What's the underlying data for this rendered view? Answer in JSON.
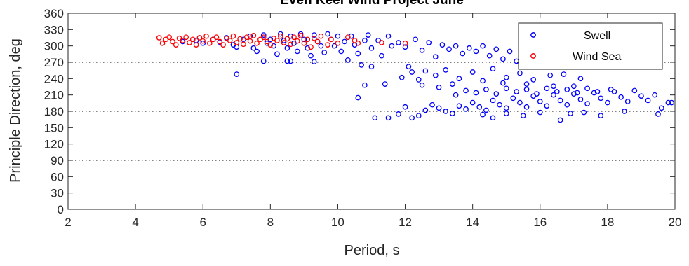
{
  "chart_data": {
    "type": "scatter",
    "title": "Even Keel Wind Project June",
    "xlabel": "Period, s",
    "ylabel": "Principle Direction, deg",
    "xlim": [
      2,
      20
    ],
    "ylim": [
      0,
      360
    ],
    "xticks": [
      2,
      4,
      6,
      8,
      10,
      12,
      14,
      16,
      18,
      20
    ],
    "yticks": [
      0,
      30,
      60,
      90,
      120,
      150,
      180,
      210,
      240,
      270,
      300,
      330,
      360
    ],
    "reference_lines": [
      90,
      180,
      270
    ],
    "grid": false,
    "legend": {
      "position": "top-right",
      "entries": [
        "Swell",
        "Wind Sea"
      ]
    },
    "series": [
      {
        "name": "Swell",
        "color": "#0000ff",
        "marker": "open-circle",
        "points": [
          [
            5.4,
            308
          ],
          [
            5.8,
            310
          ],
          [
            6.0,
            305
          ],
          [
            6.3,
            312
          ],
          [
            6.5,
            307
          ],
          [
            6.7,
            315
          ],
          [
            6.9,
            302
          ],
          [
            7.0,
            298
          ],
          [
            7.0,
            248
          ],
          [
            7.2,
            312
          ],
          [
            7.4,
            318
          ],
          [
            7.5,
            296
          ],
          [
            7.6,
            290
          ],
          [
            7.8,
            320
          ],
          [
            7.9,
            305
          ],
          [
            8.0,
            312
          ],
          [
            8.1,
            300
          ],
          [
            8.2,
            285
          ],
          [
            8.3,
            322
          ],
          [
            8.4,
            310
          ],
          [
            8.5,
            296
          ],
          [
            8.5,
            272
          ],
          [
            8.6,
            318
          ],
          [
            8.7,
            305
          ],
          [
            8.8,
            290
          ],
          [
            8.9,
            322
          ],
          [
            9.0,
            312
          ],
          [
            9.1,
            296
          ],
          [
            9.2,
            282
          ],
          [
            9.3,
            320
          ],
          [
            9.4,
            308
          ],
          [
            9.5,
            300
          ],
          [
            9.6,
            288
          ],
          [
            9.7,
            322
          ],
          [
            9.8,
            312
          ],
          [
            9.9,
            300
          ],
          [
            10.0,
            318
          ],
          [
            10.1,
            290
          ],
          [
            10.2,
            308
          ],
          [
            10.3,
            274
          ],
          [
            10.4,
            318
          ],
          [
            10.5,
            302
          ],
          [
            10.6,
            286
          ],
          [
            10.7,
            265
          ],
          [
            10.8,
            310
          ],
          [
            10.9,
            320
          ],
          [
            11.0,
            296
          ],
          [
            11.0,
            262
          ],
          [
            11.2,
            310
          ],
          [
            11.3,
            282
          ],
          [
            11.5,
            318
          ],
          [
            11.6,
            300
          ],
          [
            11.8,
            306
          ],
          [
            12.0,
            298
          ],
          [
            12.1,
            262
          ],
          [
            12.3,
            312
          ],
          [
            12.5,
            292
          ],
          [
            12.7,
            306
          ],
          [
            12.9,
            280
          ],
          [
            13.1,
            302
          ],
          [
            13.3,
            294
          ],
          [
            13.5,
            300
          ],
          [
            13.7,
            286
          ],
          [
            13.9,
            296
          ],
          [
            14.1,
            290
          ],
          [
            14.3,
            300
          ],
          [
            14.5,
            282
          ],
          [
            14.7,
            294
          ],
          [
            14.9,
            276
          ],
          [
            15.1,
            290
          ],
          [
            15.3,
            272
          ],
          [
            15.5,
            286
          ],
          [
            15.7,
            300
          ],
          [
            16.0,
            280
          ],
          [
            16.2,
            296
          ],
          [
            16.5,
            275
          ],
          [
            16.8,
            290
          ],
          [
            7.8,
            272
          ],
          [
            8.6,
            272
          ],
          [
            9.3,
            271
          ],
          [
            10.8,
            228
          ],
          [
            10.6,
            205
          ],
          [
            11.4,
            230
          ],
          [
            11.9,
            242
          ],
          [
            12.2,
            252
          ],
          [
            12.4,
            238
          ],
          [
            12.6,
            254
          ],
          [
            12.9,
            246
          ],
          [
            13.2,
            256
          ],
          [
            13.6,
            240
          ],
          [
            14.0,
            252
          ],
          [
            14.3,
            236
          ],
          [
            14.6,
            258
          ],
          [
            15.0,
            242
          ],
          [
            15.4,
            250
          ],
          [
            15.8,
            238
          ],
          [
            16.3,
            246
          ],
          [
            16.7,
            248
          ],
          [
            17.2,
            240
          ],
          [
            11.1,
            168
          ],
          [
            11.5,
            168
          ],
          [
            11.8,
            175
          ],
          [
            12.0,
            188
          ],
          [
            12.2,
            168
          ],
          [
            12.4,
            172
          ],
          [
            12.6,
            182
          ],
          [
            12.8,
            192
          ],
          [
            13.0,
            186
          ],
          [
            13.2,
            180
          ],
          [
            13.4,
            176
          ],
          [
            13.6,
            190
          ],
          [
            13.8,
            184
          ],
          [
            14.0,
            196
          ],
          [
            14.2,
            188
          ],
          [
            14.4,
            182
          ],
          [
            14.6,
            200
          ],
          [
            14.8,
            192
          ],
          [
            15.0,
            186
          ],
          [
            15.2,
            204
          ],
          [
            15.4,
            196
          ],
          [
            15.6,
            188
          ],
          [
            15.8,
            208
          ],
          [
            16.0,
            198
          ],
          [
            16.2,
            190
          ],
          [
            16.4,
            210
          ],
          [
            16.6,
            200
          ],
          [
            16.8,
            192
          ],
          [
            17.0,
            212
          ],
          [
            17.2,
            202
          ],
          [
            17.4,
            194
          ],
          [
            17.6,
            214
          ],
          [
            17.8,
            204
          ],
          [
            18.0,
            196
          ],
          [
            18.2,
            216
          ],
          [
            18.4,
            206
          ],
          [
            18.6,
            198
          ],
          [
            18.8,
            218
          ],
          [
            19.0,
            208
          ],
          [
            19.2,
            200
          ],
          [
            19.4,
            210
          ],
          [
            19.6,
            186
          ],
          [
            19.8,
            196
          ],
          [
            19.9,
            196
          ],
          [
            19.5,
            175
          ],
          [
            13.5,
            210
          ],
          [
            13.8,
            218
          ],
          [
            14.1,
            214
          ],
          [
            14.4,
            220
          ],
          [
            14.7,
            212
          ],
          [
            15.0,
            222
          ],
          [
            15.3,
            216
          ],
          [
            15.6,
            220
          ],
          [
            15.9,
            212
          ],
          [
            16.2,
            222
          ],
          [
            16.5,
            216
          ],
          [
            16.8,
            220
          ],
          [
            17.1,
            214
          ],
          [
            17.4,
            222
          ],
          [
            17.7,
            216
          ],
          [
            18.1,
            220
          ],
          [
            14.3,
            174
          ],
          [
            14.6,
            168
          ],
          [
            15.0,
            176
          ],
          [
            15.5,
            172
          ],
          [
            16.0,
            178
          ],
          [
            16.6,
            164
          ],
          [
            16.9,
            176
          ],
          [
            17.3,
            178
          ],
          [
            17.8,
            172
          ],
          [
            18.5,
            180
          ],
          [
            12.5,
            228
          ],
          [
            13.0,
            224
          ],
          [
            13.4,
            230
          ],
          [
            14.9,
            232
          ],
          [
            15.6,
            230
          ],
          [
            16.4,
            226
          ],
          [
            17.0,
            226
          ]
        ]
      },
      {
        "name": "Wind Sea",
        "color": "#ff0000",
        "marker": "open-circle",
        "points": [
          [
            4.7,
            315
          ],
          [
            4.8,
            305
          ],
          [
            4.9,
            312
          ],
          [
            5.0,
            316
          ],
          [
            5.1,
            308
          ],
          [
            5.2,
            302
          ],
          [
            5.3,
            314
          ],
          [
            5.4,
            310
          ],
          [
            5.5,
            316
          ],
          [
            5.6,
            306
          ],
          [
            5.7,
            312
          ],
          [
            5.8,
            302
          ],
          [
            5.9,
            315
          ],
          [
            6.0,
            309
          ],
          [
            6.1,
            318
          ],
          [
            6.2,
            305
          ],
          [
            6.3,
            312
          ],
          [
            6.4,
            316
          ],
          [
            6.5,
            308
          ],
          [
            6.6,
            302
          ],
          [
            6.7,
            314
          ],
          [
            6.8,
            310
          ],
          [
            6.9,
            318
          ],
          [
            7.0,
            306
          ],
          [
            7.1,
            313
          ],
          [
            7.2,
            303
          ],
          [
            7.3,
            316
          ],
          [
            7.4,
            309
          ],
          [
            7.5,
            319
          ],
          [
            7.6,
            305
          ],
          [
            7.7,
            312
          ],
          [
            7.8,
            316
          ],
          [
            7.9,
            308
          ],
          [
            8.0,
            302
          ],
          [
            8.1,
            314
          ],
          [
            8.2,
            310
          ],
          [
            8.3,
            318
          ],
          [
            8.4,
            306
          ],
          [
            8.5,
            313
          ],
          [
            8.6,
            303
          ],
          [
            8.7,
            316
          ],
          [
            8.8,
            309
          ],
          [
            8.9,
            319
          ],
          [
            9.0,
            305
          ],
          [
            9.1,
            312
          ],
          [
            9.2,
            298
          ],
          [
            9.3,
            314
          ],
          [
            9.4,
            308
          ],
          [
            9.5,
            318
          ],
          [
            9.7,
            302
          ],
          [
            9.8,
            312
          ],
          [
            10.0,
            305
          ],
          [
            10.3,
            316
          ],
          [
            10.5,
            310
          ],
          [
            10.6,
            305
          ],
          [
            11.3,
            306
          ],
          [
            12.0,
            305
          ]
        ]
      }
    ]
  }
}
